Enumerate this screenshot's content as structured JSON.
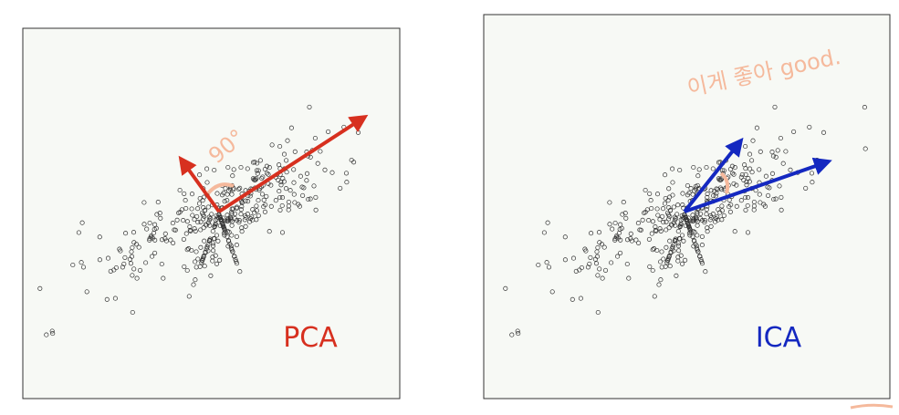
{
  "panels": [
    {
      "label": "PCA",
      "annotation": "90°"
    },
    {
      "label": "ICA",
      "annotation": "이게 좋아 good."
    }
  ]
}
